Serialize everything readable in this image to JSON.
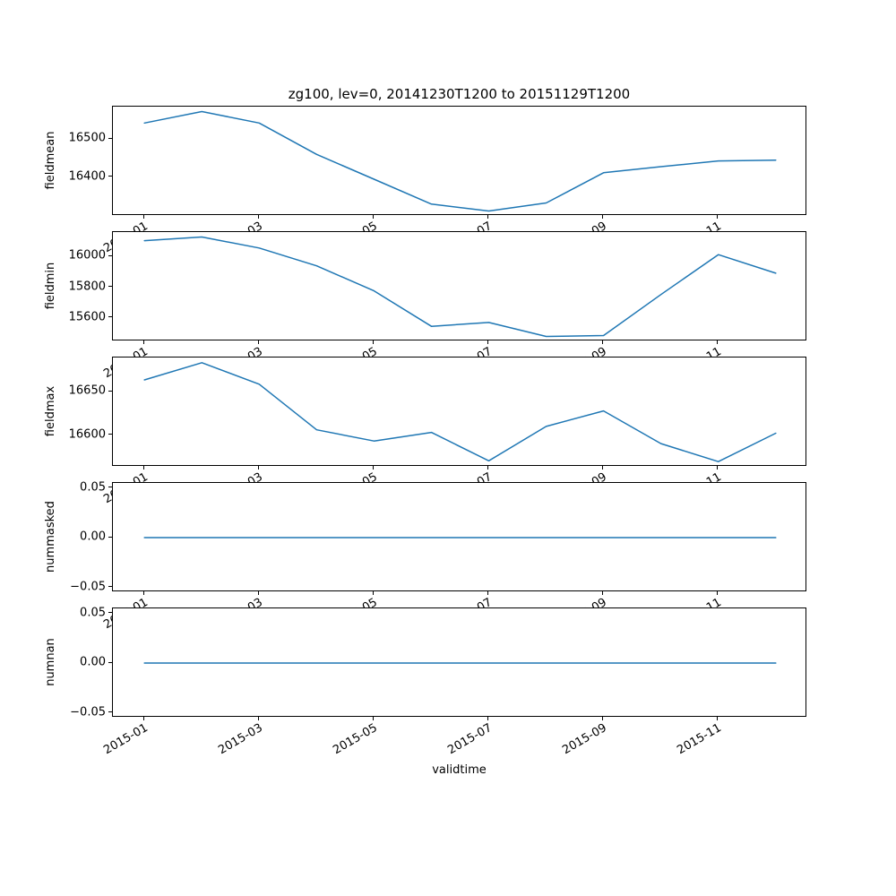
{
  "title": "zg100, lev=0, 20141230T1200 to 20151129T1200",
  "xlabel": "validtime",
  "accent_color": "#1f77b4",
  "x_ticks": [
    {
      "label": "2015-01",
      "month": 1
    },
    {
      "label": "2015-03",
      "month": 3
    },
    {
      "label": "2015-05",
      "month": 5
    },
    {
      "label": "2015-07",
      "month": 7
    },
    {
      "label": "2015-09",
      "month": 9
    },
    {
      "label": "2015-11",
      "month": 11
    }
  ],
  "chart_data": [
    {
      "type": "line",
      "name": "fieldmean",
      "ylabel": "fieldmean",
      "x": [
        "2015-01",
        "2015-02",
        "2015-03",
        "2015-04",
        "2015-05",
        "2015-06",
        "2015-07",
        "2015-08",
        "2015-09",
        "2015-10",
        "2015-11",
        "2015-12"
      ],
      "values": [
        16542,
        16572,
        16542,
        16460,
        16395,
        16330,
        16312,
        16333,
        16412,
        16428,
        16443,
        16445
      ],
      "yticks": [
        {
          "label": "16400",
          "value": 16400
        },
        {
          "label": "16500",
          "value": 16500
        }
      ],
      "ylim": [
        16299,
        16585
      ],
      "grid": false
    },
    {
      "type": "line",
      "name": "fieldmin",
      "ylabel": "fieldmin",
      "x": [
        "2015-01",
        "2015-02",
        "2015-03",
        "2015-04",
        "2015-05",
        "2015-06",
        "2015-07",
        "2015-08",
        "2015-09",
        "2015-10",
        "2015-11",
        "2015-12"
      ],
      "values": [
        16103,
        16127,
        16055,
        15939,
        15776,
        15545,
        15570,
        15479,
        15485,
        15752,
        16012,
        15891
      ],
      "yticks": [
        {
          "label": "15600",
          "value": 15600
        },
        {
          "label": "15800",
          "value": 15800
        },
        {
          "label": "16000",
          "value": 16000
        }
      ],
      "ylim": [
        15447,
        16159
      ],
      "grid": false
    },
    {
      "type": "line",
      "name": "fieldmax",
      "ylabel": "fieldmax",
      "x": [
        "2015-01",
        "2015-02",
        "2015-03",
        "2015-04",
        "2015-05",
        "2015-06",
        "2015-07",
        "2015-08",
        "2015-09",
        "2015-10",
        "2015-11",
        "2015-12"
      ],
      "values": [
        16664,
        16684,
        16659,
        16606,
        16593,
        16603,
        16570,
        16610,
        16628,
        16590,
        16569,
        16602
      ],
      "yticks": [
        {
          "label": "16600",
          "value": 16600
        },
        {
          "label": "16650",
          "value": 16650
        }
      ],
      "ylim": [
        16563,
        16690
      ],
      "grid": false
    },
    {
      "type": "line",
      "name": "nummasked",
      "ylabel": "nummasked",
      "x": [
        "2015-01",
        "2015-02",
        "2015-03",
        "2015-04",
        "2015-05",
        "2015-06",
        "2015-07",
        "2015-08",
        "2015-09",
        "2015-10",
        "2015-11",
        "2015-12"
      ],
      "values": [
        0,
        0,
        0,
        0,
        0,
        0,
        0,
        0,
        0,
        0,
        0,
        0
      ],
      "yticks": [
        {
          "label": "−0.05",
          "value": -0.05
        },
        {
          "label": "0.00",
          "value": 0
        },
        {
          "label": "0.05",
          "value": 0.05
        }
      ],
      "ylim": [
        -0.055,
        0.055
      ],
      "grid": false
    },
    {
      "type": "line",
      "name": "numnan",
      "ylabel": "numnan",
      "x": [
        "2015-01",
        "2015-02",
        "2015-03",
        "2015-04",
        "2015-05",
        "2015-06",
        "2015-07",
        "2015-08",
        "2015-09",
        "2015-10",
        "2015-11",
        "2015-12"
      ],
      "values": [
        0,
        0,
        0,
        0,
        0,
        0,
        0,
        0,
        0,
        0,
        0,
        0
      ],
      "yticks": [
        {
          "label": "−0.05",
          "value": -0.05
        },
        {
          "label": "0.00",
          "value": 0
        },
        {
          "label": "0.05",
          "value": 0.05
        }
      ],
      "ylim": [
        -0.055,
        0.055
      ],
      "grid": false
    }
  ]
}
